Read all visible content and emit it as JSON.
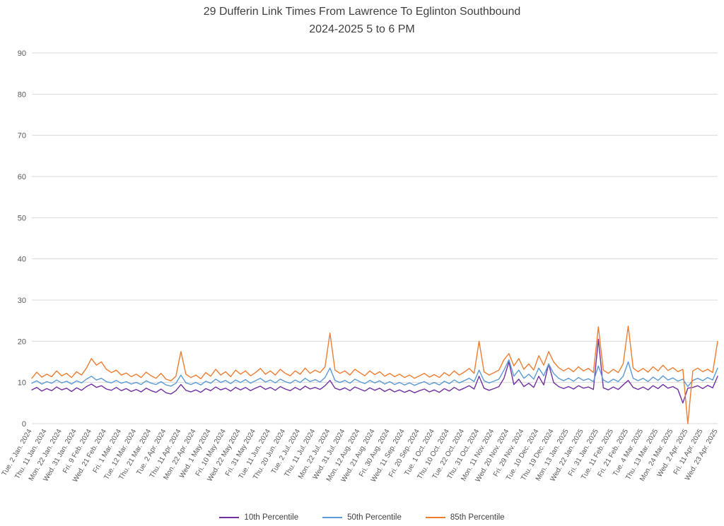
{
  "chart_data": {
    "type": "line",
    "title": "29 Dufferin Link Times From Lawrence To Eglinton Southbound",
    "subtitle": "2024-2025 5 to 6 PM",
    "xlabel": "",
    "ylabel": "",
    "ylim": [
      0,
      90
    ],
    "yticks": [
      0,
      10,
      20,
      30,
      40,
      50,
      60,
      70,
      80,
      90
    ],
    "grid": true,
    "legend_position": "bottom",
    "points_per_category": 3,
    "categories": [
      "Tue. 2 Jan. 2024",
      "Thu. 11 Jan. 2024",
      "Mon. 22 Jan. 2024",
      "Wed. 31 Jan. 2024",
      "Fri. 9 Feb. 2024",
      "Wed. 21 Feb. 2024",
      "Fri. 1 Mar. 2024",
      "Tue. 12 Mar. 2024",
      "Thu. 21 Mar. 2024",
      "Tue. 2 Apr. 2024",
      "Thu. 11 Apr. 2024",
      "Mon. 22 Apr. 2024",
      "Wed. 1 May 2024",
      "Fri. 10 May 2024",
      "Wed. 22 May 2024",
      "Fri. 31 May 2024",
      "Tue. 11 Jun. 2024",
      "Thu. 20 Jun. 2024",
      "Tue. 2 Jul. 2024",
      "Thu. 11 Jul. 2024",
      "Mon. 22 Jul. 2024",
      "Wed. 31 Jul. 2024",
      "Mon. 12 Aug. 2024",
      "Wed. 21 Aug. 2024",
      "Fri. 30 Aug. 2024",
      "Wed. 11 Sep. 2024",
      "Fri. 20 Sep. 2024",
      "Tue. 1 Oct. 2024",
      "Thu. 10 Oct. 2024",
      "Tue. 22 Oct. 2024",
      "Thu. 31 Oct. 2024",
      "Mon. 11 Nov. 2024",
      "Wed. 20 Nov. 2024",
      "Fri. 29 Nov. 2024",
      "Tue. 10 Dec. 2024",
      "Thu. 19 Dec. 2024",
      "Mon. 13 Jan. 2025",
      "Wed. 22 Jan. 2025",
      "Fri. 31 Jan. 2025",
      "Tue. 11 Feb. 2025",
      "Fri. 21 Feb. 2025",
      "Tue. 4 Mar. 2025",
      "Thu. 13 Mar. 2025",
      "Mon. 24 Mar. 2025",
      "Wed. 2 Apr. 2025",
      "Fri. 11 Apr. 2025",
      "Wed. 23 Apr. 2025"
    ],
    "series": [
      {
        "name": "10th Percentile",
        "color": "#7030A0",
        "values": [
          8.2,
          8.8,
          7.9,
          8.5,
          8.0,
          8.9,
          8.2,
          8.6,
          7.8,
          8.7,
          8.1,
          9.0,
          9.6,
          8.8,
          9.2,
          8.4,
          8.1,
          8.8,
          8.0,
          8.5,
          7.8,
          8.3,
          7.7,
          8.6,
          8.0,
          7.6,
          8.4,
          7.5,
          7.2,
          8.0,
          9.5,
          8.1,
          7.7,
          8.2,
          7.6,
          8.5,
          8.0,
          8.9,
          8.2,
          8.6,
          7.9,
          8.8,
          8.2,
          8.8,
          8.0,
          8.6,
          9.1,
          8.3,
          8.8,
          8.1,
          9.0,
          8.4,
          8.0,
          8.8,
          8.2,
          9.1,
          8.4,
          8.8,
          8.3,
          9.2,
          10.5,
          8.6,
          8.2,
          8.7,
          8.0,
          8.9,
          8.4,
          7.9,
          8.7,
          8.1,
          8.6,
          7.8,
          8.4,
          7.7,
          8.2,
          7.6,
          8.1,
          7.5,
          8.0,
          8.4,
          7.7,
          8.2,
          7.6,
          8.5,
          7.9,
          8.8,
          8.1,
          8.6,
          9.2,
          8.4,
          11.5,
          8.6,
          8.1,
          8.5,
          9.0,
          11.0,
          15.0,
          9.5,
          10.8,
          9.0,
          9.8,
          8.8,
          11.5,
          9.4,
          14.5,
          10.0,
          9.0,
          8.5,
          9.0,
          8.4,
          9.2,
          8.6,
          8.9,
          8.3,
          20.5,
          8.7,
          8.2,
          8.9,
          8.3,
          9.4,
          10.5,
          8.8,
          8.3,
          8.9,
          8.2,
          9.2,
          8.5,
          9.5,
          8.6,
          9.0,
          8.3,
          5.0,
          8.6,
          8.8,
          9.2,
          8.5,
          9.3,
          8.7,
          11.5
        ]
      },
      {
        "name": "50th Percentile",
        "color": "#5B9BD5",
        "values": [
          9.8,
          10.4,
          9.6,
          10.2,
          9.8,
          10.6,
          9.9,
          10.3,
          9.6,
          10.4,
          9.9,
          10.8,
          11.5,
          10.6,
          11.0,
          10.2,
          9.9,
          10.5,
          9.8,
          10.2,
          9.6,
          10.0,
          9.5,
          10.4,
          9.8,
          9.5,
          10.2,
          9.4,
          9.1,
          9.8,
          11.8,
          9.9,
          9.5,
          10.0,
          9.4,
          10.3,
          9.8,
          10.8,
          10.0,
          10.5,
          9.7,
          10.6,
          10.0,
          10.7,
          9.8,
          10.4,
          11.0,
          10.1,
          10.6,
          9.9,
          10.8,
          10.2,
          9.8,
          10.6,
          10.0,
          11.0,
          10.2,
          10.7,
          10.1,
          11.2,
          13.5,
          10.5,
          10.0,
          10.5,
          9.8,
          10.8,
          10.2,
          9.7,
          10.5,
          9.9,
          10.4,
          9.6,
          10.2,
          9.5,
          10.0,
          9.4,
          9.9,
          9.3,
          9.8,
          10.2,
          9.5,
          10.0,
          9.4,
          10.3,
          9.7,
          10.6,
          9.9,
          10.4,
          11.0,
          10.2,
          13.0,
          10.4,
          9.9,
          10.3,
          10.8,
          13.0,
          15.5,
          11.5,
          13.0,
          11.0,
          12.0,
          10.8,
          13.5,
          11.6,
          14.5,
          12.2,
          11.0,
          10.4,
          11.0,
          10.3,
          11.2,
          10.5,
          10.9,
          10.2,
          14.0,
          10.6,
          10.0,
          10.8,
          10.2,
          11.5,
          15.0,
          11.0,
          10.4,
          11.0,
          10.2,
          11.3,
          10.5,
          11.6,
          10.6,
          11.1,
          10.3,
          10.8,
          9.0,
          10.5,
          11.0,
          10.4,
          11.2,
          10.6,
          13.5
        ]
      },
      {
        "name": "85th Percentile",
        "color": "#ED7D31",
        "values": [
          11.0,
          12.5,
          11.3,
          12.0,
          11.4,
          12.8,
          11.6,
          12.2,
          11.2,
          12.6,
          11.8,
          13.5,
          15.8,
          14.2,
          15.0,
          13.2,
          12.4,
          13.0,
          11.8,
          12.3,
          11.4,
          12.0,
          11.2,
          12.5,
          11.6,
          11.0,
          12.2,
          10.8,
          10.4,
          11.5,
          17.5,
          12.0,
          11.2,
          11.8,
          10.9,
          12.4,
          11.5,
          13.2,
          11.8,
          12.6,
          11.4,
          13.0,
          12.0,
          12.8,
          11.6,
          12.4,
          13.4,
          12.0,
          12.8,
          11.8,
          13.2,
          12.2,
          11.6,
          12.8,
          12.0,
          13.5,
          12.2,
          13.0,
          12.4,
          13.8,
          22.0,
          13.0,
          12.2,
          12.8,
          11.8,
          13.2,
          12.4,
          11.6,
          12.8,
          11.9,
          12.6,
          11.5,
          12.2,
          11.4,
          12.0,
          11.2,
          11.8,
          11.0,
          11.6,
          12.2,
          11.3,
          11.9,
          11.2,
          12.4,
          11.6,
          12.8,
          11.8,
          12.5,
          13.4,
          12.2,
          20.0,
          12.6,
          11.8,
          12.4,
          13.0,
          15.5,
          17.0,
          14.0,
          15.8,
          13.2,
          14.5,
          13.0,
          16.5,
          14.2,
          17.5,
          15.0,
          13.6,
          12.8,
          13.5,
          12.6,
          13.8,
          12.8,
          13.4,
          12.4,
          23.5,
          13.0,
          12.2,
          13.2,
          12.4,
          14.5,
          23.7,
          13.5,
          12.6,
          13.4,
          12.5,
          13.8,
          12.8,
          14.2,
          12.9,
          13.6,
          12.6,
          13.2,
          0.0,
          12.8,
          13.5,
          12.6,
          13.2,
          12.4,
          20.0
        ]
      }
    ]
  }
}
